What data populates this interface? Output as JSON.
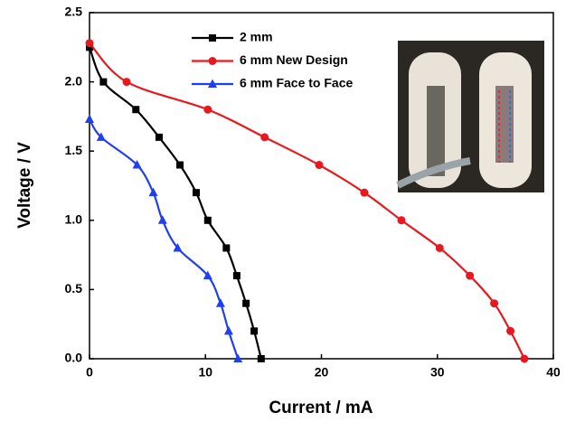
{
  "chart_data": {
    "type": "line",
    "x_label": "Current / mA",
    "y_label": "Voltage / V",
    "xlim": [
      0,
      40
    ],
    "xticks": [
      0,
      10,
      20,
      30,
      40
    ],
    "ylim": [
      0,
      2.5
    ],
    "yticks": [
      {
        "value": 0,
        "label": "0.0"
      },
      0.5,
      {
        "value": 1,
        "label": "1.0"
      },
      1.5,
      {
        "value": 2,
        "label": "2.0"
      },
      2.5
    ],
    "legend": "top-center",
    "series": [
      {
        "name": "2 mm",
        "color": "#000000",
        "marker": "square",
        "x": [
          0,
          1.2,
          4,
          6,
          7.8,
          9.2,
          10.2,
          11.8,
          12.7,
          13.5,
          14.2,
          14.8
        ],
        "values": [
          2.25,
          2.0,
          1.8,
          1.6,
          1.4,
          1.2,
          1.0,
          0.8,
          0.6,
          0.4,
          0.2,
          0.0
        ]
      },
      {
        "name": "6 mm New Design",
        "color": "#e8191e",
        "marker": "circle",
        "x": [
          0,
          3.2,
          10.2,
          15.1,
          19.8,
          23.7,
          26.9,
          30.2,
          32.8,
          34.9,
          36.3,
          37.5
        ],
        "values": [
          2.28,
          2.0,
          1.8,
          1.6,
          1.4,
          1.2,
          1.0,
          0.8,
          0.6,
          0.4,
          0.2,
          0.0
        ]
      },
      {
        "name": "6 mm Face to Face",
        "color": "#1f3ff0",
        "marker": "triangle",
        "x": [
          0,
          1,
          4.1,
          5.5,
          6.3,
          7.6,
          10.2,
          11.3,
          12,
          12.8
        ],
        "values": [
          1.73,
          1.6,
          1.4,
          1.2,
          1.0,
          0.8,
          0.6,
          0.4,
          0.2,
          0.0
        ]
      }
    ]
  }
}
